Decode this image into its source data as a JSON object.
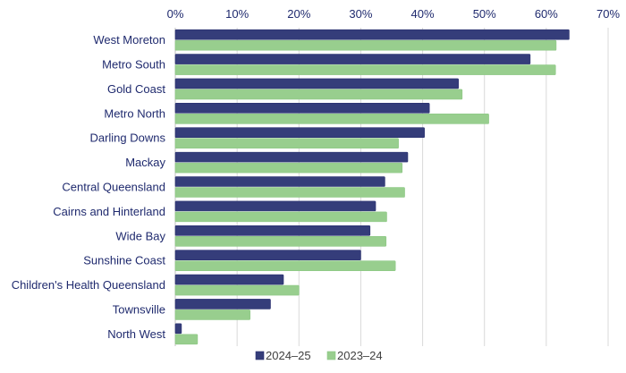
{
  "chart_data": {
    "type": "bar",
    "orientation": "horizontal",
    "categories": [
      "West Moreton",
      "Metro South",
      "Gold Coast",
      "Metro North",
      "Darling Downs",
      "Mackay",
      "Central Queensland",
      "Cairns and Hinterland",
      "Wide Bay",
      "Sunshine Coast",
      "Children's Health Queensland",
      "Townsville",
      "North West"
    ],
    "series": [
      {
        "name": "2024–25",
        "color": "#353d7a",
        "values": [
          63.7,
          57.4,
          45.8,
          41.1,
          40.3,
          37.6,
          33.9,
          32.4,
          31.5,
          30.0,
          17.5,
          15.4,
          1.0
        ]
      },
      {
        "name": "2023–24",
        "color": "#98ce8e",
        "values": [
          61.6,
          61.5,
          46.4,
          50.7,
          36.1,
          36.7,
          37.1,
          34.2,
          34.1,
          35.6,
          20.0,
          12.1,
          3.6
        ]
      }
    ],
    "xlim": [
      0,
      70
    ],
    "xticks": [
      "0%",
      "10%",
      "20%",
      "30%",
      "40%",
      "50%",
      "60%",
      "70%"
    ],
    "axis_position": "top",
    "grid": true,
    "legend_position": "bottom",
    "label_color": "#1f2a6e"
  }
}
